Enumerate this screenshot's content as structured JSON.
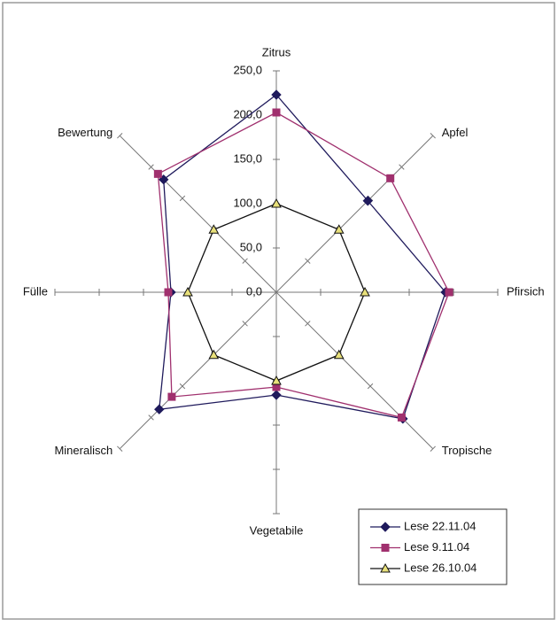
{
  "chart_data": {
    "type": "radar",
    "categories": [
      "Zitrus",
      "Apfel",
      "Pfirsich",
      "Tropische",
      "Vegetabile",
      "Mineralisch",
      "Fülle",
      "Bewertung"
    ],
    "rlim": [
      0,
      250
    ],
    "rticks": [
      {
        "value": 0,
        "label": "0,0"
      },
      {
        "value": 50,
        "label": "50,0"
      },
      {
        "value": 100,
        "label": "100,0"
      },
      {
        "value": 150,
        "label": "150,0"
      },
      {
        "value": 200,
        "label": "200,0"
      },
      {
        "value": 250,
        "label": "250,0"
      }
    ],
    "legend": "bottom-right",
    "series": [
      {
        "name": "Lese 22.11.04",
        "color": "#1f1a5c",
        "marker_color": "#1f1a5c",
        "marker": "diamond",
        "values": [
          223,
          146,
          191,
          202,
          116,
          187,
          119,
          180
        ]
      },
      {
        "name": "Lese 9.11.04",
        "color": "#a0306e",
        "marker_color": "#a0306e",
        "marker": "square",
        "values": [
          203,
          182,
          195,
          200,
          107,
          167,
          122,
          189
        ]
      },
      {
        "name": "Lese 26.10.04",
        "color": "#111111",
        "marker_color": "#e8e07a",
        "marker": "triangle",
        "values": [
          100,
          100,
          100,
          100,
          100,
          100,
          100,
          100
        ]
      }
    ]
  }
}
